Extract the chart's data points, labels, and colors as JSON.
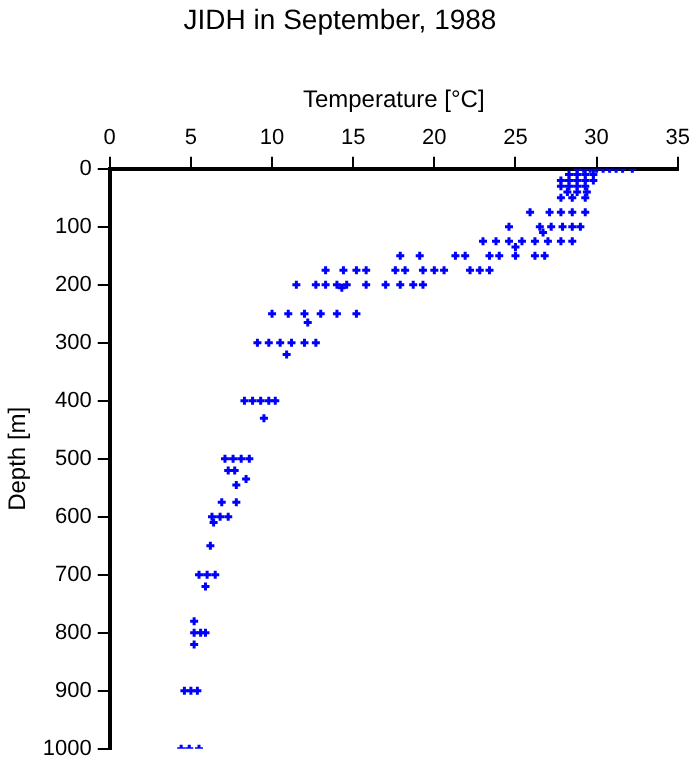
{
  "chart_data": {
    "type": "scatter",
    "title": "JIDH in September, 1988",
    "xlabel": "Temperature [°C]",
    "ylabel": "Depth [m]",
    "xlim": [
      0,
      35
    ],
    "xticks": [
      0,
      5,
      10,
      15,
      20,
      25,
      30,
      35
    ],
    "ylim": [
      1000,
      0
    ],
    "yticks": [
      0,
      100,
      200,
      300,
      400,
      500,
      600,
      700,
      800,
      900,
      1000
    ],
    "grid": false,
    "marker": "cross",
    "legend": false,
    "series": [
      {
        "color": "#0000ff",
        "x": [
          28.8,
          29.2,
          29.6,
          30,
          30.4,
          30.8,
          31.2,
          31.6,
          32.2,
          28.3,
          28.8,
          29.3,
          29.8,
          27.8,
          28.3,
          28.8,
          29.3,
          29.8,
          27.8,
          28.3,
          28.8,
          29.3,
          28.2,
          28.8,
          29.4,
          27.8,
          28.5,
          29.3,
          25.9,
          27.1,
          27.8,
          28.5,
          29.3,
          24.6,
          26.5,
          27.2,
          27.9,
          28.5,
          29,
          26.7,
          23,
          23.8,
          24.6,
          25.4,
          26.2,
          27,
          27.8,
          28.5,
          25,
          17.9,
          19.1,
          21.3,
          21.9,
          23.4,
          24,
          25,
          26.2,
          26.8,
          13.3,
          14.4,
          15.2,
          15.8,
          17.6,
          18.2,
          19.3,
          20,
          20.6,
          22.2,
          22.8,
          23.4,
          11.5,
          12.7,
          13.3,
          14,
          14.6,
          15.8,
          17,
          17.9,
          18.7,
          19.3,
          14.3,
          10,
          11,
          12,
          13,
          14,
          15.2,
          12.2,
          9.1,
          9.8,
          10.5,
          11.2,
          12,
          12.7,
          10.9,
          8.3,
          8.8,
          9.3,
          9.8,
          10.2,
          9.5,
          7.1,
          7.6,
          8.1,
          8.6,
          7.3,
          7.7,
          8.4,
          7.8,
          6.9,
          7.8,
          6.3,
          6.8,
          7.3,
          6.4,
          6.2,
          5.5,
          6,
          6.5,
          5.9,
          5.2,
          5.2,
          5.6,
          5.9,
          5.2,
          4.6,
          5,
          5.4,
          4.4,
          4.9,
          5.5
        ],
        "values": [
          0,
          0,
          0,
          0,
          0,
          0,
          0,
          0,
          0,
          10,
          10,
          10,
          10,
          20,
          20,
          20,
          20,
          20,
          30,
          30,
          30,
          30,
          40,
          40,
          40,
          50,
          50,
          50,
          75,
          75,
          75,
          75,
          75,
          100,
          100,
          100,
          100,
          100,
          100,
          110,
          125,
          125,
          125,
          125,
          125,
          125,
          125,
          125,
          135,
          150,
          150,
          150,
          150,
          150,
          150,
          150,
          150,
          150,
          175,
          175,
          175,
          175,
          175,
          175,
          175,
          175,
          175,
          175,
          175,
          175,
          200,
          200,
          200,
          200,
          200,
          200,
          200,
          200,
          200,
          200,
          205,
          250,
          250,
          250,
          250,
          250,
          250,
          265,
          300,
          300,
          300,
          300,
          300,
          300,
          320,
          400,
          400,
          400,
          400,
          400,
          430,
          500,
          500,
          500,
          500,
          520,
          520,
          535,
          545,
          575,
          575,
          600,
          600,
          600,
          610,
          650,
          700,
          700,
          700,
          720,
          780,
          800,
          800,
          800,
          820,
          900,
          900,
          900,
          1000,
          1000,
          1000
        ]
      }
    ]
  }
}
